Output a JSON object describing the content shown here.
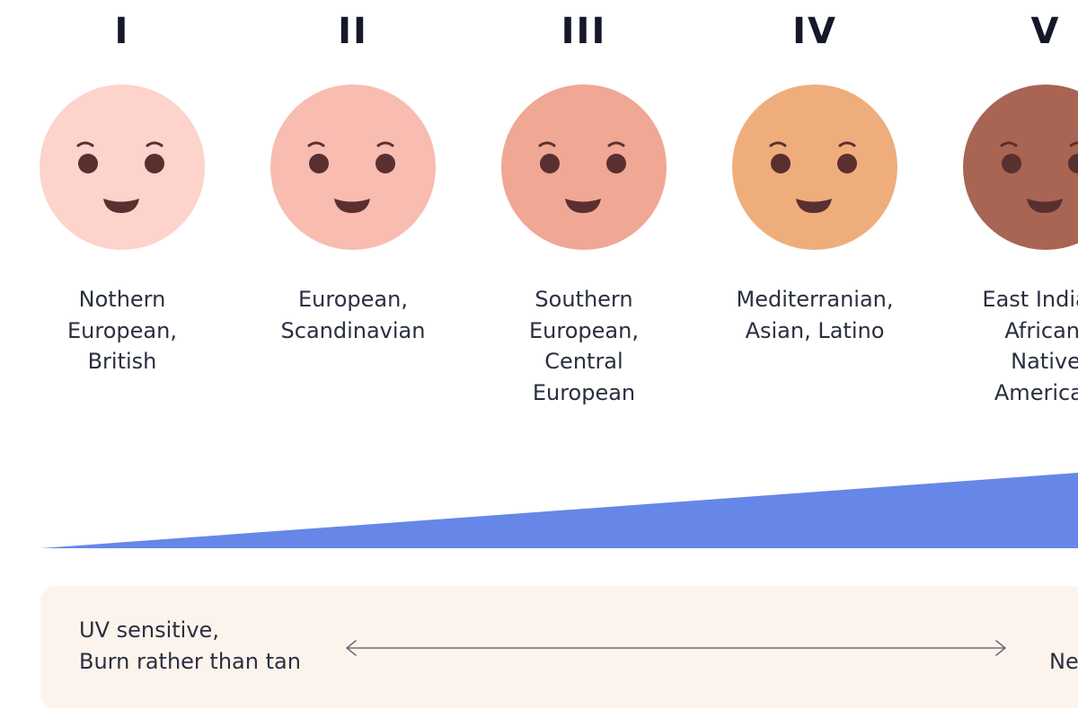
{
  "skin_types": [
    {
      "numeral": "I",
      "label": "Nothern\nEuropean,\nBritish",
      "skin_color": "#fdd3cc"
    },
    {
      "numeral": "II",
      "label": "European,\nScandinavian",
      "skin_color": "#f8bcb0"
    },
    {
      "numeral": "III",
      "label": "Southern\nEuropean,\nCentral\nEuropean",
      "skin_color": "#f0a794"
    },
    {
      "numeral": "IV",
      "label": "Mediterranian,\nAsian, Latino",
      "skin_color": "#efad7c"
    },
    {
      "numeral": "V",
      "label": "East Indian,\nAfrican,\nNative\nAmerican",
      "skin_color": "#a86553"
    }
  ],
  "face_feature_color": "#5a2f30",
  "wedge_color": "#6687e8",
  "panel": {
    "background": "#fcf4ec",
    "left_text": "UV sensitive,\nBurn rather than tan",
    "right_text": "Never burn"
  }
}
